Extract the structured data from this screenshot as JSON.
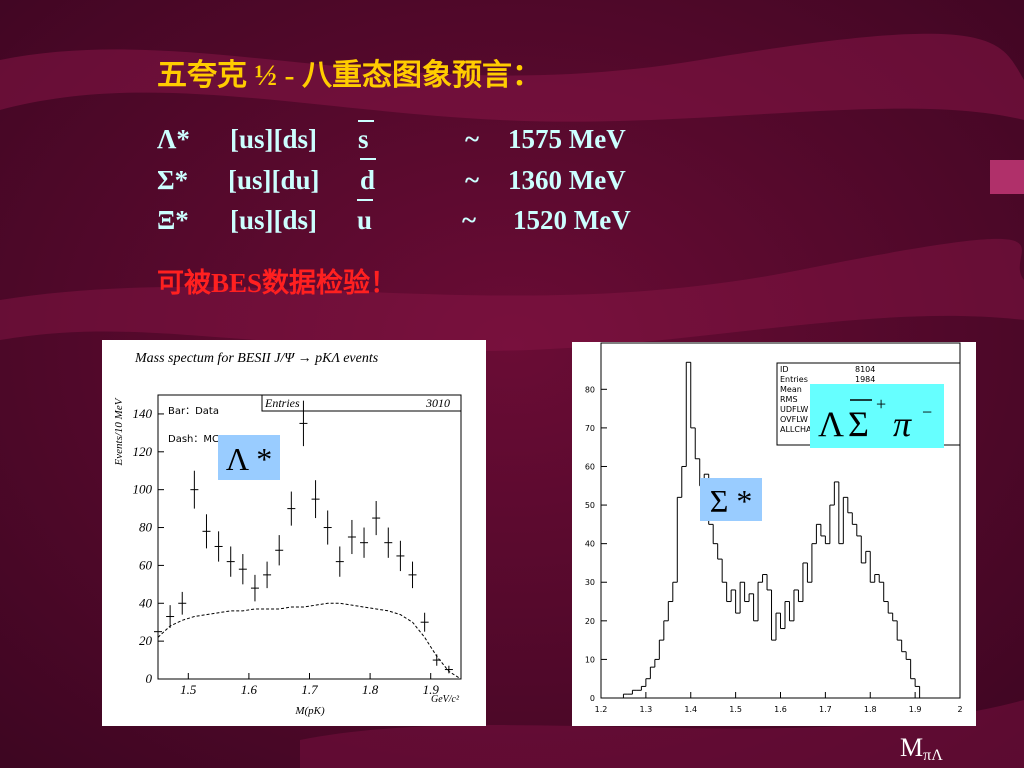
{
  "slide": {
    "title": "五夸克 ½ - 八重态图象预言：",
    "rows": [
      {
        "state": "Λ*",
        "quarks": "[us][ds]",
        "antiquark": "s",
        "approx": "~",
        "mass": "1575 MeV"
      },
      {
        "state": "Σ*",
        "quarks": "[us][du]",
        "antiquark": "d",
        "approx": "~",
        "mass": "1360 MeV"
      },
      {
        "state": "Ξ*",
        "quarks": "[us][ds]",
        "antiquark": "u",
        "approx": "~",
        "mass": "1520 MeV"
      }
    ],
    "note": "可被BES数据检验！",
    "footer": {
      "main": "M",
      "sub": "πΛ"
    }
  },
  "chart_data": [
    {
      "type": "errorbar",
      "title": "Mass spectum for BESII J/Ψ → pKΛ events",
      "x_label": "M(pK)",
      "x_unit": "GeV/c²",
      "y_label": "Events/10 MeV",
      "xlim": [
        1.45,
        1.95
      ],
      "ylim": [
        0,
        150
      ],
      "xticks": [
        1.5,
        1.6,
        1.7,
        1.8,
        1.9
      ],
      "yticks": [
        0,
        20,
        40,
        60,
        80,
        100,
        120,
        140
      ],
      "legend": [
        "Bar：Data",
        "Dash：MC"
      ],
      "stats": {
        "label": "Entries",
        "value": 3010
      },
      "annotation": "Λ *",
      "series": [
        {
          "color": "#000000",
          "style": "errorbar",
          "x": [
            1.45,
            1.47,
            1.49,
            1.51,
            1.53,
            1.55,
            1.57,
            1.59,
            1.61,
            1.63,
            1.65,
            1.67,
            1.69,
            1.71,
            1.73,
            1.75,
            1.77,
            1.79,
            1.81,
            1.83,
            1.85,
            1.87,
            1.89,
            1.91,
            1.93
          ],
          "values": [
            25,
            33,
            40,
            100,
            78,
            70,
            62,
            58,
            48,
            55,
            68,
            90,
            135,
            95,
            80,
            62,
            75,
            72,
            85,
            72,
            65,
            55,
            30,
            10,
            5
          ],
          "errors": [
            5,
            6,
            6,
            10,
            9,
            8,
            8,
            8,
            7,
            7,
            8,
            9,
            12,
            10,
            9,
            8,
            9,
            8,
            9,
            8,
            8,
            7,
            5,
            3,
            2
          ]
        },
        {
          "color": "#000000",
          "style": "dash",
          "x": [
            1.45,
            1.47,
            1.49,
            1.51,
            1.53,
            1.55,
            1.57,
            1.59,
            1.61,
            1.63,
            1.65,
            1.67,
            1.69,
            1.71,
            1.73,
            1.75,
            1.77,
            1.79,
            1.81,
            1.83,
            1.85,
            1.87,
            1.89,
            1.91,
            1.93,
            1.95
          ],
          "values": [
            22,
            28,
            31,
            33,
            34,
            35,
            36,
            36,
            37,
            37,
            37,
            38,
            38,
            39,
            40,
            40,
            39,
            38,
            37,
            36,
            34,
            30,
            22,
            12,
            4,
            0
          ]
        }
      ]
    },
    {
      "type": "histogram",
      "xlim": [
        1.2,
        2
      ],
      "ylim": [
        0,
        92
      ],
      "xticks": [
        1.2,
        1.3,
        1.4,
        1.5,
        1.6,
        1.7,
        1.8,
        1.9,
        2
      ],
      "yticks": [
        0,
        10,
        20,
        30,
        40,
        50,
        60,
        70,
        80
      ],
      "stats": [
        {
          "label": "ID",
          "value": 8104
        },
        {
          "label": "Entries",
          "value": 1984
        },
        {
          "label": "Mean"
        },
        {
          "label": "RMS"
        },
        {
          "label": "UDFLW"
        },
        {
          "label": "OVFLW"
        },
        {
          "label": "ALLCHAN"
        }
      ],
      "annotation": "Σ *",
      "annotation2": [
        "Λ",
        "Σ",
        "+",
        "π",
        "−"
      ],
      "color": "#000000",
      "bins": [
        1.25,
        1.26,
        1.27,
        1.28,
        1.29,
        1.3,
        1.31,
        1.32,
        1.33,
        1.34,
        1.35,
        1.36,
        1.37,
        1.38,
        1.39,
        1.4,
        1.41,
        1.42,
        1.43,
        1.44,
        1.45,
        1.46,
        1.47,
        1.48,
        1.49,
        1.5,
        1.51,
        1.52,
        1.53,
        1.54,
        1.55,
        1.56,
        1.57,
        1.58,
        1.59,
        1.6,
        1.61,
        1.62,
        1.63,
        1.64,
        1.65,
        1.66,
        1.67,
        1.68,
        1.69,
        1.7,
        1.71,
        1.72,
        1.73,
        1.74,
        1.75,
        1.76,
        1.77,
        1.78,
        1.79,
        1.8,
        1.81,
        1.82,
        1.83,
        1.84,
        1.85,
        1.86,
        1.87,
        1.88,
        1.89,
        1.9,
        1.91
      ],
      "values": [
        1,
        1,
        2,
        2,
        3,
        5,
        8,
        10,
        15,
        20,
        25,
        30,
        52,
        60,
        87,
        70,
        62,
        55,
        58,
        45,
        40,
        36,
        30,
        25,
        28,
        22,
        30,
        25,
        27,
        20,
        30,
        32,
        28,
        15,
        22,
        18,
        25,
        20,
        28,
        25,
        35,
        30,
        40,
        45,
        42,
        40,
        50,
        56,
        40,
        52,
        48,
        45,
        42,
        35,
        38,
        30,
        32,
        30,
        25,
        22,
        20,
        15,
        12,
        10,
        5,
        3
      ]
    }
  ]
}
